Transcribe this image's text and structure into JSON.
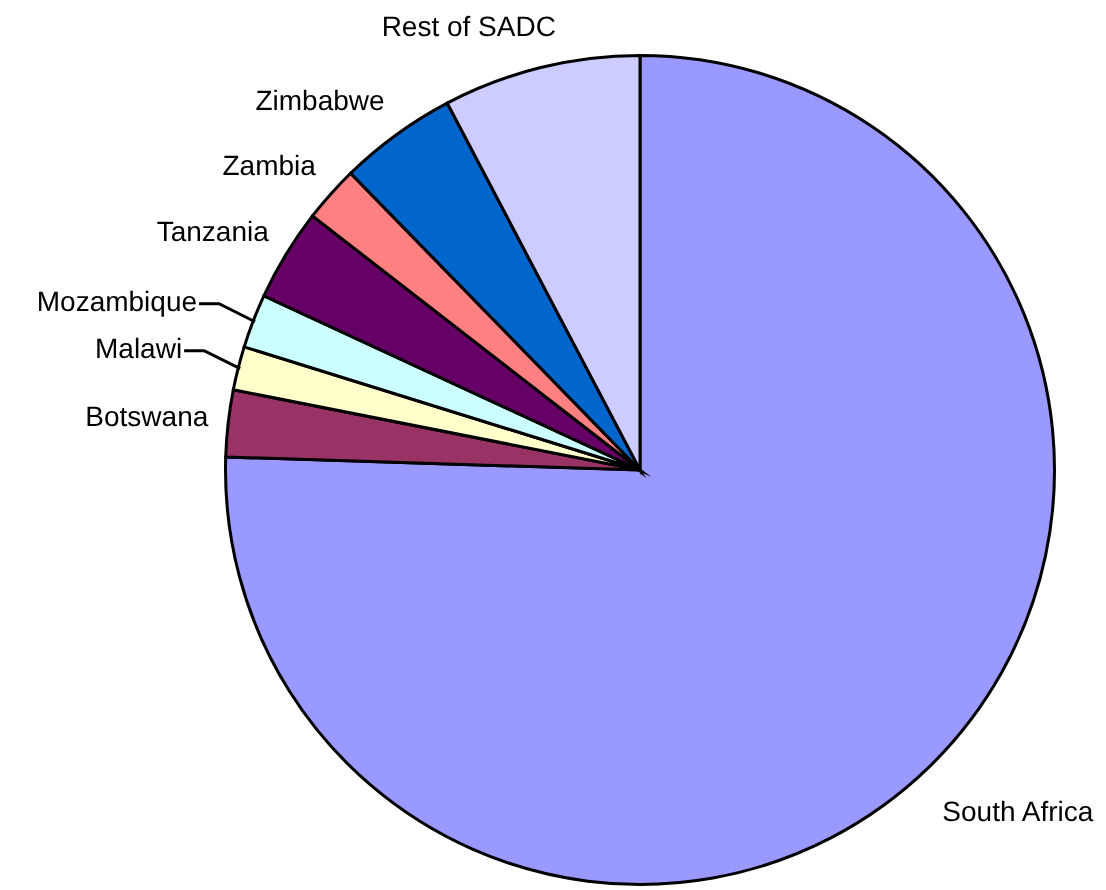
{
  "chart_data": {
    "type": "pie",
    "categories": [
      "South Africa",
      "Botswana",
      "Malawi",
      "Mozambique",
      "Tanzania",
      "Zambia",
      "Zimbabwe",
      "Rest of SADC"
    ],
    "values": [
      75.5,
      2.6,
      1.7,
      2.1,
      3.6,
      2.2,
      4.6,
      7.7
    ],
    "colors": [
      "#9999ff",
      "#993366",
      "#ffffcc",
      "#ccffff",
      "#660066",
      "#ff8080",
      "#0066cc",
      "#ccccff"
    ],
    "legend": false
  }
}
